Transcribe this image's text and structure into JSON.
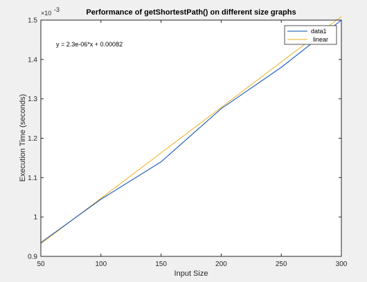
{
  "chart_data": {
    "type": "line",
    "title": "Performance of getShortestPath() on different size graphs",
    "xlabel": "Input Size",
    "ylabel": "Execution Time (seconds)",
    "y_exponent_base": "×10",
    "y_exponent_power": "-3",
    "xlim": [
      50,
      300
    ],
    "ylim": [
      0.0009,
      0.0015
    ],
    "xticks": [
      50,
      100,
      150,
      200,
      250,
      300
    ],
    "xtick_labels": [
      "50",
      "100",
      "150",
      "200",
      "250",
      "300"
    ],
    "yticks": [
      0.0009,
      0.001,
      0.0011,
      0.0012,
      0.0013,
      0.0014,
      0.0015
    ],
    "ytick_labels": [
      "0.9",
      "1",
      "1.1",
      "1.2",
      "1.3",
      "1.4",
      "1.5"
    ],
    "grid": false,
    "legend_position": "top-right",
    "annotation": "y = 2.3e-06*x + 0.00082",
    "series": [
      {
        "name": "data1",
        "color": "#0047ba",
        "x": [
          50,
          100,
          150,
          200,
          250,
          300
        ],
        "y": [
          0.000935,
          0.001045,
          0.00114,
          0.001275,
          0.00138,
          0.0015
        ]
      },
      {
        "name": "linear",
        "color": "#ecb01f",
        "x": [
          50,
          300
        ],
        "y": [
          0.000932,
          0.001509
        ]
      }
    ]
  }
}
